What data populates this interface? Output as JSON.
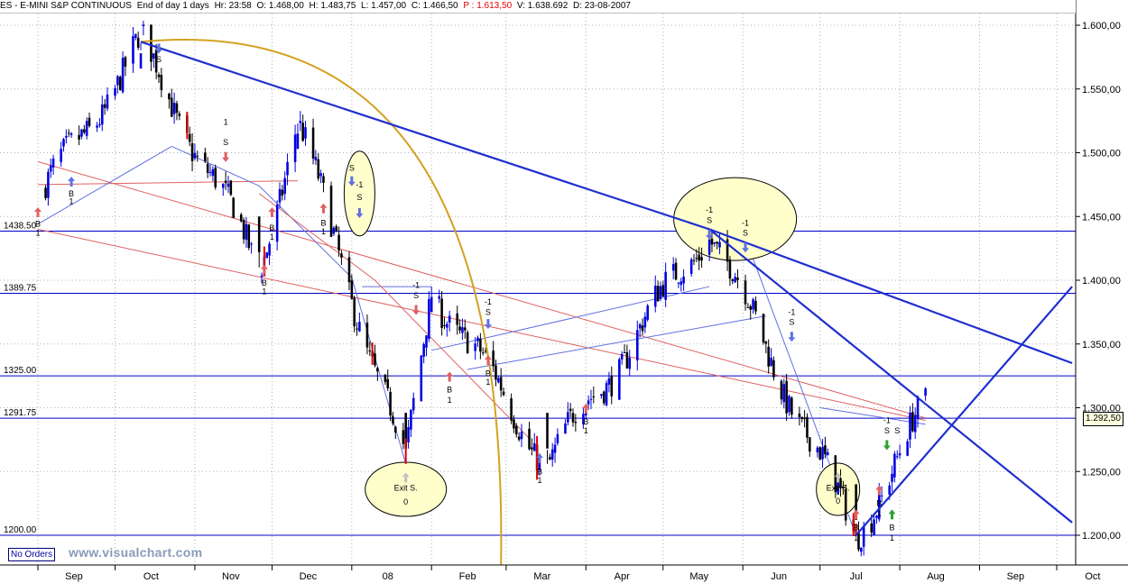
{
  "header": {
    "symbol": "ES - E-MINI S&P CONTINUOUS",
    "period": "End of day 1 days",
    "time": "Hr: 23:58",
    "open": "O: 1.468,00",
    "high": "H: 1.483,75",
    "low": "L: 1.457,00",
    "close": "C: 1.466,50",
    "prediction": "P : 1.613,50",
    "volume": "V: 1.638.692",
    "date": "D: 23-08-2007"
  },
  "footer": {
    "no_orders": "No Orders",
    "watermark": "www.visualchart.com"
  },
  "colors": {
    "background": "#ffffff",
    "candle_up": "#0000e0",
    "candle_down": "#000000",
    "support_lines": "#0000cc",
    "trendlines": "#1f2fd0",
    "arc": "#d4a020",
    "ellipse_fill": "#ffffcc",
    "thin_red": "#e06060",
    "thin_blue": "#6070e0"
  },
  "chart_data": {
    "type": "candlestick",
    "x_tick_labels": [
      "Sep",
      "Oct",
      "Nov",
      "Dec",
      "08",
      "Feb",
      "Mar",
      "Apr",
      "May",
      "Jun",
      "Jul",
      "Aug",
      "Sep",
      "Oct"
    ],
    "y_axis": {
      "range": [
        1172,
        1612
      ],
      "tick_values": [
        1200,
        1250,
        1300,
        1350,
        1400,
        1450,
        1500,
        1550,
        1600
      ],
      "tick_labels": [
        "1.200,00",
        "1.250,00",
        "1.300,00",
        "1.350,00",
        "1.400,00",
        "1.450,00",
        "1.500,00",
        "1.550,00",
        "1.600,00"
      ]
    },
    "last_price_label": "1.292,50",
    "horizontal_levels": [
      {
        "value": 1438.5,
        "label": "1438.50"
      },
      {
        "value": 1389.75,
        "label": "1389.75"
      },
      {
        "value": 1325,
        "label": "1325.00"
      },
      {
        "value": 1291.75,
        "label": "1291.75"
      },
      {
        "value": 1200,
        "label": "1200.00"
      }
    ],
    "key_points": [
      {
        "date": "2007-09-04",
        "price": 1470
      },
      {
        "date": "2007-10-11",
        "price": 1586
      },
      {
        "date": "2007-11-26",
        "price": 1410
      },
      {
        "date": "2007-12-11",
        "price": 1523
      },
      {
        "date": "2008-01-22",
        "price": 1256
      },
      {
        "date": "2008-02-01",
        "price": 1395
      },
      {
        "date": "2008-03-17",
        "price": 1256
      },
      {
        "date": "2008-05-19",
        "price": 1440
      },
      {
        "date": "2008-07-15",
        "price": 1200
      },
      {
        "date": "2008-08-11",
        "price": 1300
      }
    ],
    "trendlines": [
      {
        "from": {
          "date": "2007-10-11",
          "price": 1587
        },
        "to": {
          "date": "2008-05-19",
          "price": 1440
        }
      },
      {
        "from": {
          "date": "2008-05-19",
          "price": 1440
        },
        "to": {
          "date": "2008-10-07",
          "price": 1335
        }
      },
      {
        "from": {
          "date": "2008-05-19",
          "price": 1440
        },
        "to": {
          "date": "2008-10-07",
          "price": 1210
        }
      },
      {
        "from": {
          "date": "2008-07-15",
          "price": 1200
        },
        "to": {
          "date": "2008-10-07",
          "price": 1395
        }
      }
    ],
    "annotations": [
      {
        "text": "S",
        "date": "2007-10-18",
        "price": 1573
      },
      {
        "text": "B",
        "date": "2007-09-14",
        "price": 1468
      },
      {
        "text": "1",
        "date": "2007-09-14",
        "price": 1462
      },
      {
        "text": "B",
        "date": "2007-09-01",
        "price": 1444
      },
      {
        "text": "1",
        "date": "2007-09-01",
        "price": 1437
      },
      {
        "text": "1",
        "date": "2007-11-13",
        "price": 1524
      },
      {
        "text": "S",
        "date": "2007-11-13",
        "price": 1508
      },
      {
        "text": "B",
        "date": "2007-11-28",
        "price": 1398
      },
      {
        "text": "1",
        "date": "2007-11-28",
        "price": 1391
      },
      {
        "text": "B",
        "date": "2007-12-01",
        "price": 1441
      },
      {
        "text": "1",
        "date": "2007-12-01",
        "price": 1434
      },
      {
        "text": "B",
        "date": "2007-12-21",
        "price": 1445
      },
      {
        "text": "1",
        "date": "2007-12-21",
        "price": 1438
      },
      {
        "text": "S",
        "date": "2008-01-01",
        "price": 1488
      },
      {
        "text": "-1",
        "date": "2008-01-04",
        "price": 1475
      },
      {
        "text": "S",
        "date": "2008-01-04",
        "price": 1465
      },
      {
        "text": "Exit S.",
        "date": "2008-01-22",
        "price": 1237
      },
      {
        "text": "0",
        "date": "2008-01-22",
        "price": 1226
      },
      {
        "text": "-1",
        "date": "2008-01-26",
        "price": 1396
      },
      {
        "text": "S",
        "date": "2008-01-26",
        "price": 1388
      },
      {
        "text": "B",
        "date": "2008-02-08",
        "price": 1314
      },
      {
        "text": "1",
        "date": "2008-02-08",
        "price": 1306
      },
      {
        "text": "-1",
        "date": "2008-02-23",
        "price": 1383
      },
      {
        "text": "S",
        "date": "2008-02-23",
        "price": 1375
      },
      {
        "text": "B",
        "date": "2008-02-23",
        "price": 1327
      },
      {
        "text": "1",
        "date": "2008-02-23",
        "price": 1320
      },
      {
        "text": "B",
        "date": "2008-03-14",
        "price": 1250
      },
      {
        "text": "1",
        "date": "2008-03-14",
        "price": 1243
      },
      {
        "text": "B",
        "date": "2008-04-01",
        "price": 1289
      },
      {
        "text": "1",
        "date": "2008-04-01",
        "price": 1282
      },
      {
        "text": "-1",
        "date": "2008-05-19",
        "price": 1455
      },
      {
        "text": "S",
        "date": "2008-05-19",
        "price": 1447
      },
      {
        "text": "-1",
        "date": "2008-06-02",
        "price": 1445
      },
      {
        "text": "S",
        "date": "2008-06-02",
        "price": 1437
      },
      {
        "text": "-1",
        "date": "2008-06-20",
        "price": 1375
      },
      {
        "text": "S",
        "date": "2008-06-20",
        "price": 1367
      },
      {
        "text": "Exit S.",
        "date": "2008-07-08",
        "price": 1237
      },
      {
        "text": "0",
        "date": "2008-07-08",
        "price": 1227
      },
      {
        "text": "B",
        "date": "2008-07-15",
        "price": 1206
      },
      {
        "text": "1",
        "date": "2008-07-15",
        "price": 1198
      },
      {
        "text": "B",
        "date": "2008-07-24",
        "price": 1225
      },
      {
        "text": "1",
        "date": "2008-07-24",
        "price": 1217
      },
      {
        "text": "-1",
        "date": "2008-07-27",
        "price": 1290
      },
      {
        "text": "S",
        "date": "2008-07-27",
        "price": 1282
      },
      {
        "text": "B",
        "date": "2008-07-29",
        "price": 1206
      },
      {
        "text": "1",
        "date": "2008-07-29",
        "price": 1198
      },
      {
        "text": "S",
        "date": "2008-07-31",
        "price": 1282
      }
    ]
  }
}
